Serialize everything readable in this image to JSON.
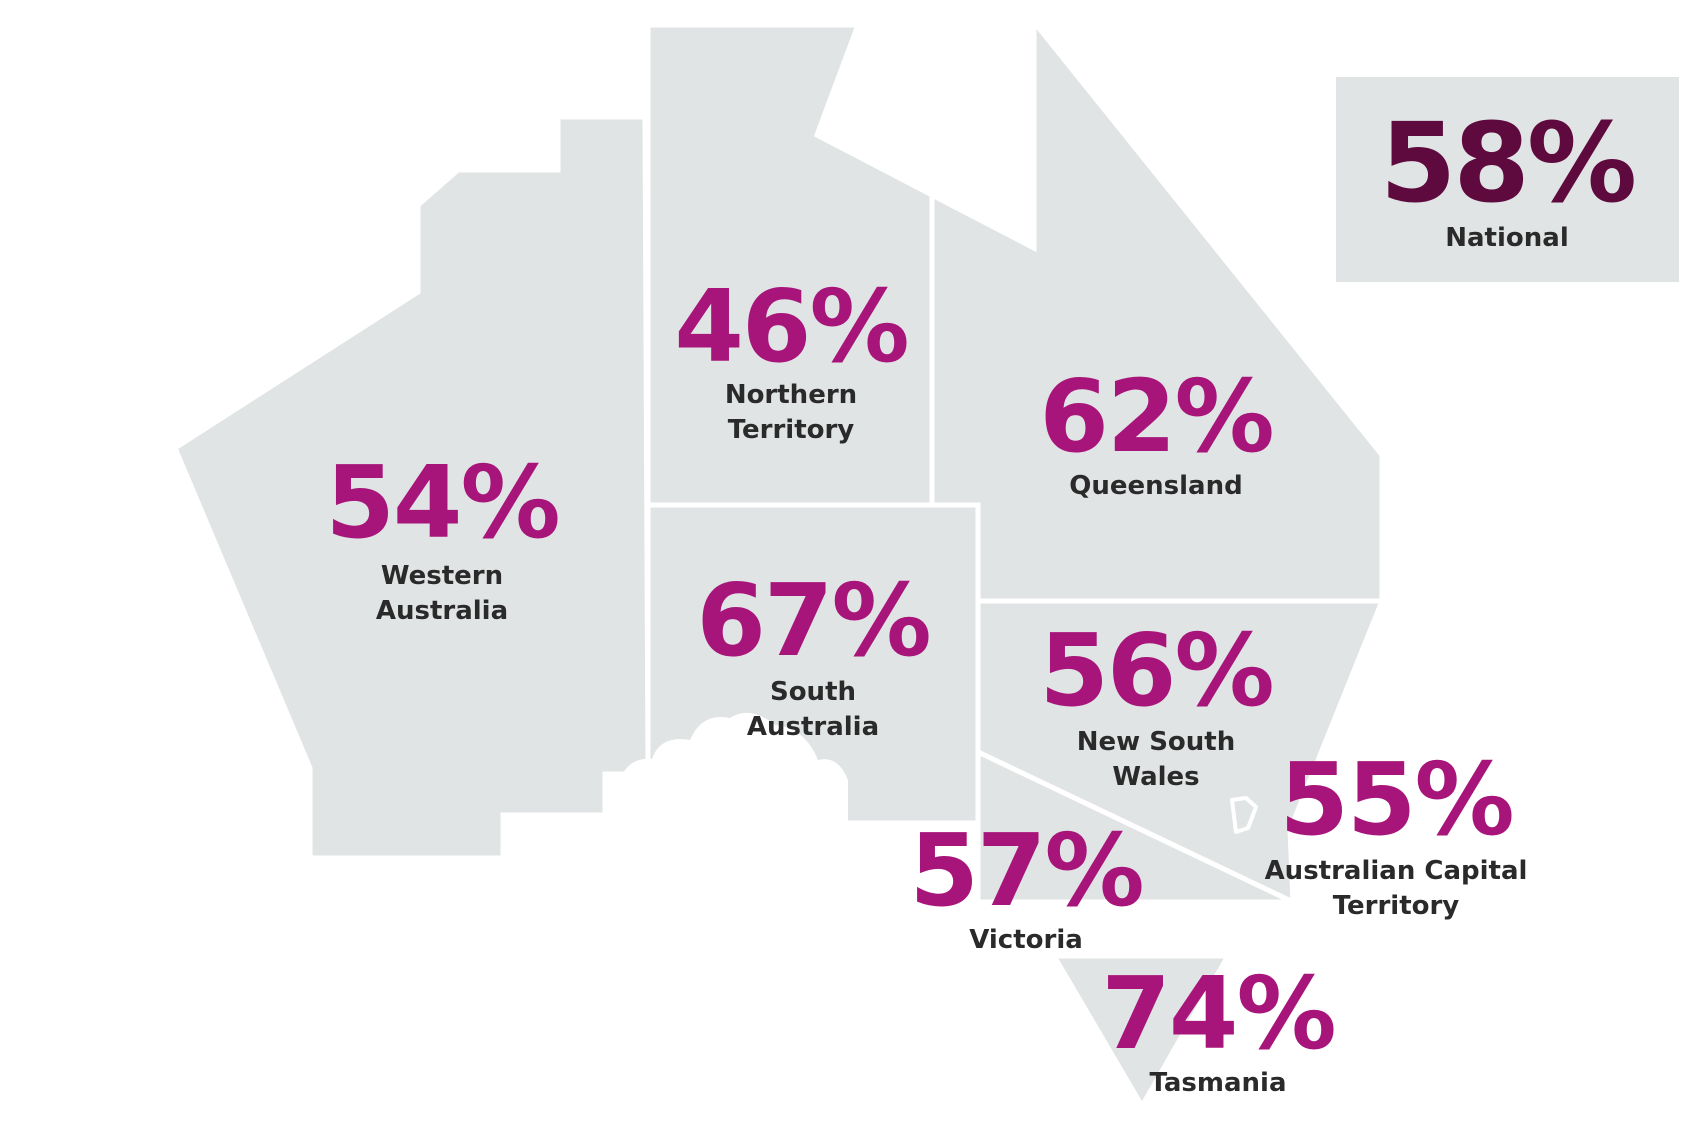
{
  "colors": {
    "region_fill": "#e1e4e4",
    "border": "#ffffff",
    "percent": "#a8157a",
    "national_percent": "#5e0a3e",
    "label": "#2a2a2a"
  },
  "national": {
    "percent": "58%",
    "label": "National"
  },
  "regions": [
    {
      "id": "wa",
      "percent": "54%",
      "label_lines": [
        "Western",
        "Australia"
      ]
    },
    {
      "id": "nt",
      "percent": "46%",
      "label_lines": [
        "Northern",
        "Territory"
      ]
    },
    {
      "id": "qld",
      "percent": "62%",
      "label_lines": [
        "Queensland"
      ]
    },
    {
      "id": "sa",
      "percent": "67%",
      "label_lines": [
        "South",
        "Australia"
      ]
    },
    {
      "id": "nsw",
      "percent": "56%",
      "label_lines": [
        "New South",
        "Wales"
      ]
    },
    {
      "id": "act",
      "percent": "55%",
      "label_lines": [
        "Australian Capital",
        "Territory"
      ]
    },
    {
      "id": "vic",
      "percent": "57%",
      "label_lines": [
        "Victoria"
      ]
    },
    {
      "id": "tas",
      "percent": "74%",
      "label_lines": [
        "Tasmania"
      ]
    }
  ]
}
